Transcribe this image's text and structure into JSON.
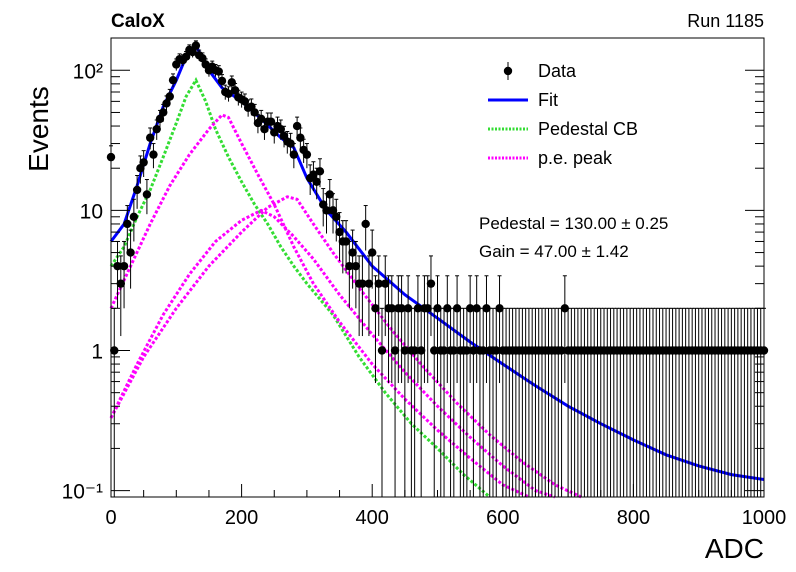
{
  "header": {
    "experiment": "CaloX",
    "run": "Run 1185"
  },
  "fit_results": {
    "pedestal": "Pedestal = 130.00 ± 0.25",
    "gain": "Gain = 47.00 ± 1.42"
  },
  "chart_data": {
    "type": "scatter",
    "xlabel": "ADC",
    "ylabel": "Events",
    "xlim": [
      0,
      1000
    ],
    "ylim": [
      0.09,
      170
    ],
    "yscale": "log",
    "x_ticks": [
      0,
      200,
      400,
      600,
      800,
      1000
    ],
    "y_ticks": [
      {
        "value": 0.1,
        "label": "10⁻¹"
      },
      {
        "value": 1,
        "label": "1"
      },
      {
        "value": 10,
        "label": "10"
      },
      {
        "value": 100,
        "label": "10²"
      }
    ],
    "grid": false,
    "legend_position": "top-right",
    "legend": [
      {
        "label": "Data",
        "style": "marker",
        "color": "#000000"
      },
      {
        "label": "Fit",
        "style": "line",
        "color": "#0000ff"
      },
      {
        "label": "Pedestal CB",
        "style": "dotted",
        "color": "#33dd33"
      },
      {
        "label": "p.e. peak",
        "style": "dotted",
        "color": "#ff00ff"
      }
    ],
    "series": [
      {
        "name": "Data",
        "points": [
          [
            0,
            24
          ],
          [
            5,
            1
          ],
          [
            10,
            4
          ],
          [
            15,
            3
          ],
          [
            20,
            4
          ],
          [
            25,
            8
          ],
          [
            30,
            5
          ],
          [
            35,
            9
          ],
          [
            40,
            14
          ],
          [
            45,
            20
          ],
          [
            50,
            22
          ],
          [
            55,
            13
          ],
          [
            60,
            33
          ],
          [
            65,
            25
          ],
          [
            70,
            38
          ],
          [
            75,
            45
          ],
          [
            80,
            50
          ],
          [
            85,
            58
          ],
          [
            90,
            65
          ],
          [
            95,
            85
          ],
          [
            100,
            110
          ],
          [
            105,
            120
          ],
          [
            110,
            118
          ],
          [
            115,
            125
          ],
          [
            120,
            140
          ],
          [
            125,
            135
          ],
          [
            130,
            150
          ],
          [
            135,
            128
          ],
          [
            140,
            122
          ],
          [
            145,
            110
          ],
          [
            150,
            100
          ],
          [
            155,
            106
          ],
          [
            160,
            100
          ],
          [
            165,
            98
          ],
          [
            170,
            84
          ],
          [
            175,
            70
          ],
          [
            180,
            68
          ],
          [
            185,
            82
          ],
          [
            190,
            72
          ],
          [
            195,
            64
          ],
          [
            200,
            62
          ],
          [
            205,
            60
          ],
          [
            210,
            54
          ],
          [
            215,
            55
          ],
          [
            220,
            50
          ],
          [
            225,
            42
          ],
          [
            230,
            45
          ],
          [
            235,
            38
          ],
          [
            240,
            43
          ],
          [
            245,
            43
          ],
          [
            250,
            36
          ],
          [
            255,
            40
          ],
          [
            260,
            38
          ],
          [
            265,
            34
          ],
          [
            270,
            31
          ],
          [
            275,
            30
          ],
          [
            280,
            25
          ],
          [
            285,
            40
          ],
          [
            290,
            33
          ],
          [
            295,
            27
          ],
          [
            300,
            25
          ],
          [
            305,
            17
          ],
          [
            310,
            18
          ],
          [
            315,
            16
          ],
          [
            320,
            19
          ],
          [
            325,
            11
          ],
          [
            330,
            10
          ],
          [
            335,
            13
          ],
          [
            340,
            10
          ],
          [
            345,
            9
          ],
          [
            350,
            7
          ],
          [
            355,
            6
          ],
          [
            360,
            6
          ],
          [
            365,
            4
          ],
          [
            370,
            5
          ],
          [
            375,
            4
          ],
          [
            380,
            3
          ],
          [
            385,
            3
          ],
          [
            390,
            8
          ],
          [
            395,
            3
          ],
          [
            400,
            5
          ],
          [
            405,
            2
          ],
          [
            410,
            3
          ],
          [
            415,
            1
          ],
          [
            420,
            3
          ],
          [
            425,
            2
          ],
          [
            430,
            2
          ],
          [
            435,
            1
          ],
          [
            440,
            2
          ],
          [
            445,
            2
          ],
          [
            450,
            1
          ],
          [
            455,
            2
          ],
          [
            460,
            1
          ],
          [
            465,
            1
          ],
          [
            470,
            2
          ],
          [
            475,
            1
          ],
          [
            480,
            2
          ],
          [
            485,
            2
          ],
          [
            490,
            3
          ],
          [
            495,
            1
          ],
          [
            500,
            2
          ],
          [
            505,
            1
          ],
          [
            510,
            1
          ],
          [
            515,
            2
          ],
          [
            520,
            1
          ],
          [
            525,
            1
          ],
          [
            530,
            2
          ],
          [
            535,
            1
          ],
          [
            540,
            1
          ],
          [
            545,
            1
          ],
          [
            550,
            2
          ],
          [
            555,
            1
          ],
          [
            560,
            2
          ],
          [
            565,
            1
          ],
          [
            570,
            1
          ],
          [
            575,
            2
          ],
          [
            580,
            1
          ],
          [
            585,
            1
          ],
          [
            590,
            1
          ],
          [
            595,
            2
          ],
          [
            600,
            1
          ],
          [
            605,
            1
          ],
          [
            610,
            1
          ],
          [
            615,
            1
          ],
          [
            620,
            1
          ],
          [
            625,
            1
          ],
          [
            630,
            1
          ],
          [
            635,
            1
          ],
          [
            640,
            1
          ],
          [
            645,
            1
          ],
          [
            650,
            1
          ],
          [
            655,
            1
          ],
          [
            660,
            1
          ],
          [
            665,
            1
          ],
          [
            670,
            1
          ],
          [
            675,
            1
          ],
          [
            680,
            1
          ],
          [
            685,
            1
          ],
          [
            690,
            1
          ],
          [
            695,
            2
          ],
          [
            700,
            1
          ],
          [
            705,
            1
          ],
          [
            710,
            1
          ],
          [
            715,
            1
          ],
          [
            720,
            1
          ],
          [
            725,
            1
          ],
          [
            730,
            1
          ],
          [
            735,
            1
          ],
          [
            740,
            1
          ],
          [
            745,
            1
          ],
          [
            750,
            1
          ],
          [
            755,
            1
          ],
          [
            760,
            1
          ],
          [
            765,
            1
          ],
          [
            770,
            1
          ],
          [
            775,
            1
          ],
          [
            780,
            1
          ],
          [
            785,
            1
          ],
          [
            790,
            1
          ],
          [
            795,
            1
          ],
          [
            800,
            1
          ],
          [
            805,
            1
          ],
          [
            810,
            1
          ],
          [
            815,
            1
          ],
          [
            820,
            1
          ],
          [
            825,
            1
          ],
          [
            830,
            1
          ],
          [
            835,
            1
          ],
          [
            840,
            1
          ],
          [
            845,
            1
          ],
          [
            850,
            1
          ],
          [
            855,
            1
          ],
          [
            860,
            1
          ],
          [
            865,
            1
          ],
          [
            870,
            1
          ],
          [
            875,
            1
          ],
          [
            880,
            1
          ],
          [
            885,
            1
          ],
          [
            890,
            1
          ],
          [
            895,
            1
          ],
          [
            900,
            1
          ],
          [
            905,
            1
          ],
          [
            910,
            1
          ],
          [
            915,
            1
          ],
          [
            920,
            1
          ],
          [
            925,
            1
          ],
          [
            930,
            1
          ],
          [
            935,
            1
          ],
          [
            940,
            1
          ],
          [
            945,
            1
          ],
          [
            950,
            1
          ],
          [
            955,
            1
          ],
          [
            960,
            1
          ],
          [
            965,
            1
          ],
          [
            970,
            1
          ],
          [
            975,
            1
          ],
          [
            980,
            1
          ],
          [
            985,
            1
          ],
          [
            990,
            1
          ],
          [
            995,
            1
          ],
          [
            1000,
            1
          ]
        ]
      },
      {
        "name": "Fit",
        "points": [
          [
            0,
            6
          ],
          [
            20,
            8
          ],
          [
            40,
            15
          ],
          [
            60,
            30
          ],
          [
            80,
            55
          ],
          [
            100,
            85
          ],
          [
            115,
            125
          ],
          [
            130,
            150
          ],
          [
            150,
            100
          ],
          [
            170,
            75
          ],
          [
            200,
            60
          ],
          [
            230,
            45
          ],
          [
            260,
            33
          ],
          [
            280,
            28
          ],
          [
            300,
            17
          ],
          [
            330,
            10
          ],
          [
            360,
            7
          ],
          [
            400,
            4
          ],
          [
            450,
            2.5
          ],
          [
            500,
            1.7
          ],
          [
            550,
            1.15
          ],
          [
            600,
            0.8
          ],
          [
            650,
            0.56
          ],
          [
            700,
            0.4
          ],
          [
            750,
            0.3
          ],
          [
            800,
            0.23
          ],
          [
            850,
            0.18
          ],
          [
            900,
            0.15
          ],
          [
            950,
            0.13
          ],
          [
            1000,
            0.12
          ]
        ]
      },
      {
        "name": "Pedestal CB",
        "points": [
          [
            0,
            4
          ],
          [
            20,
            5.5
          ],
          [
            40,
            9
          ],
          [
            60,
            14
          ],
          [
            80,
            24
          ],
          [
            100,
            42
          ],
          [
            115,
            65
          ],
          [
            130,
            85
          ],
          [
            145,
            60
          ],
          [
            160,
            38
          ],
          [
            180,
            24
          ],
          [
            200,
            16
          ],
          [
            220,
            11
          ],
          [
            240,
            8
          ],
          [
            260,
            5.5
          ],
          [
            280,
            4
          ],
          [
            300,
            3
          ],
          [
            340,
            1.8
          ],
          [
            380,
            0.9
          ],
          [
            420,
            0.5
          ],
          [
            460,
            0.3
          ],
          [
            500,
            0.2
          ],
          [
            540,
            0.13
          ],
          [
            580,
            0.09
          ]
        ]
      },
      {
        "name": "p.e. peak",
        "points": [
          [
            0,
            2
          ],
          [
            30,
            4
          ],
          [
            60,
            8
          ],
          [
            90,
            15
          ],
          [
            120,
            25
          ],
          [
            150,
            38
          ],
          [
            170,
            48
          ],
          [
            180,
            46
          ],
          [
            200,
            30
          ],
          [
            225,
            18
          ],
          [
            250,
            11
          ],
          [
            280,
            5.5
          ],
          [
            310,
            3
          ],
          [
            350,
            1.6
          ],
          [
            400,
            0.8
          ],
          [
            450,
            0.45
          ],
          [
            500,
            0.27
          ],
          [
            550,
            0.17
          ],
          [
            600,
            0.11
          ],
          [
            640,
            0.09
          ]
        ]
      },
      {
        "name": "p.e. peak",
        "points": [
          [
            0,
            0.33
          ],
          [
            40,
            0.8
          ],
          [
            80,
            1.8
          ],
          [
            120,
            3.5
          ],
          [
            160,
            6
          ],
          [
            200,
            8.5
          ],
          [
            230,
            10
          ],
          [
            250,
            9
          ],
          [
            280,
            6.5
          ],
          [
            310,
            4.5
          ],
          [
            350,
            2.5
          ],
          [
            400,
            1.3
          ],
          [
            450,
            0.7
          ],
          [
            500,
            0.4
          ],
          [
            550,
            0.24
          ],
          [
            600,
            0.15
          ],
          [
            650,
            0.1
          ],
          [
            680,
            0.09
          ]
        ]
      },
      {
        "name": "p.e. peak",
        "points": [
          [
            0,
            0.33
          ],
          [
            50,
            0.9
          ],
          [
            100,
            2
          ],
          [
            150,
            4
          ],
          [
            200,
            7
          ],
          [
            240,
            10.5
          ],
          [
            270,
            12.5
          ],
          [
            285,
            12
          ],
          [
            310,
            8
          ],
          [
            340,
            5
          ],
          [
            380,
            2.8
          ],
          [
            430,
            1.4
          ],
          [
            480,
            0.75
          ],
          [
            530,
            0.42
          ],
          [
            580,
            0.25
          ],
          [
            630,
            0.16
          ],
          [
            680,
            0.11
          ],
          [
            720,
            0.09
          ]
        ]
      }
    ]
  }
}
